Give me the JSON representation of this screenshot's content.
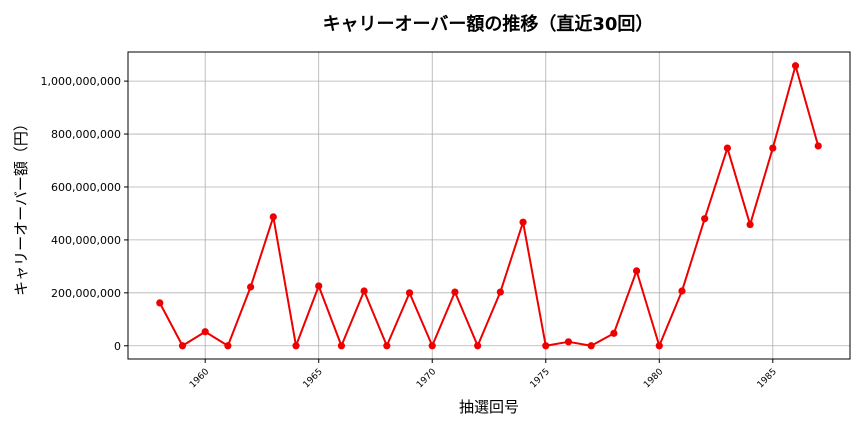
{
  "chart_data": {
    "type": "line",
    "title": "キャリーオーバー額の推移（直近30回）",
    "xlabel": "抽選回号",
    "ylabel": "キャリーオーバー額（円）",
    "xlim": [
      1956.6,
      1988.4
    ],
    "ylim": [
      -50000000,
      1110000000
    ],
    "x_ticks": [
      1960,
      1965,
      1970,
      1975,
      1980,
      1985
    ],
    "y_ticks": [
      0,
      200000000,
      400000000,
      600000000,
      800000000,
      1000000000
    ],
    "y_tick_labels": [
      "0",
      "200,000,000",
      "400,000,000",
      "600,000,000",
      "800,000,000",
      "1,000,000,000"
    ],
    "grid": true,
    "series": [
      {
        "color": "#ee0000",
        "x": [
          1958,
          1959,
          1960,
          1961,
          1962,
          1963,
          1964,
          1965,
          1966,
          1967,
          1968,
          1969,
          1970,
          1971,
          1972,
          1973,
          1974,
          1975,
          1976,
          1977,
          1978,
          1979,
          1980,
          1981,
          1982,
          1983,
          1984,
          1985,
          1986,
          1987
        ],
        "values": [
          162000000,
          0,
          53000000,
          0,
          222000000,
          487000000,
          0,
          226000000,
          0,
          207000000,
          0,
          200000000,
          0,
          203000000,
          0,
          203000000,
          467000000,
          0,
          15000000,
          0,
          47000000,
          283000000,
          0,
          207000000,
          480000000,
          747000000,
          458000000,
          747000000,
          1058000000,
          755000000
        ]
      }
    ]
  }
}
